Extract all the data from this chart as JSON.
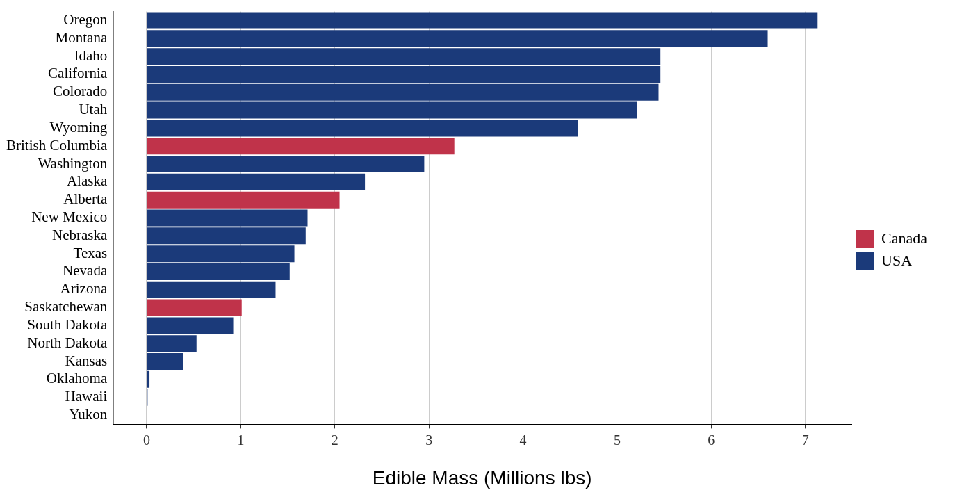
{
  "chart_data": {
    "type": "bar",
    "orientation": "horizontal",
    "stacked": true,
    "xlabel": "Edible Mass (Millions lbs)",
    "categories": [
      "Oregon",
      "Montana",
      "Idaho",
      "California",
      "Colorado",
      "Utah",
      "Wyoming",
      "British Columbia",
      "Washington",
      "Alaska",
      "Alberta",
      "New Mexico",
      "Nebraska",
      "Texas",
      "Nevada",
      "Arizona",
      "Saskatchewan",
      "South Dakota",
      "North Dakota",
      "Kansas",
      "Oklahoma",
      "Hawaii",
      "Yukon"
    ],
    "series": [
      {
        "name": "Canada",
        "color": "#c0334a",
        "values": [
          null,
          null,
          null,
          null,
          null,
          null,
          null,
          3.27,
          null,
          null,
          2.05,
          null,
          null,
          null,
          null,
          null,
          1.01,
          null,
          null,
          null,
          null,
          null,
          0
        ]
      },
      {
        "name": "USA",
        "color": "#1b3a7a",
        "values": [
          7.13,
          6.6,
          5.46,
          5.46,
          5.44,
          5.21,
          4.58,
          null,
          2.95,
          2.32,
          null,
          1.71,
          1.69,
          1.57,
          1.52,
          1.37,
          null,
          0.92,
          0.53,
          0.39,
          0.03,
          0.01,
          null
        ]
      }
    ],
    "xlim": [
      -0.36,
      7.49
    ],
    "xticks": [
      0,
      1,
      2,
      3,
      4,
      5,
      6,
      7
    ],
    "grid": "x",
    "legend": "right"
  }
}
